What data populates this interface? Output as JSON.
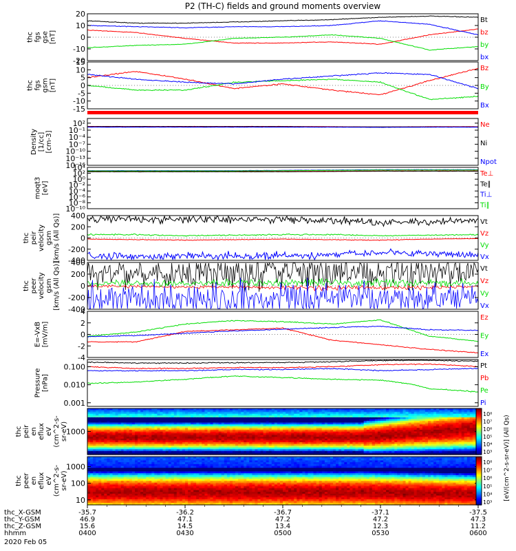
{
  "title": "P2 (TH-C) fields and ground moments overview",
  "colors": {
    "black": "#000000",
    "red": "#ff0000",
    "green": "#00dd00",
    "blue": "#0000ff"
  },
  "panels": [
    {
      "id": "fgs-gse",
      "ylabel": [
        "thc",
        "fgs",
        "gse",
        "[nT]"
      ],
      "ticks": [
        [
          "20",
          20
        ],
        [
          "10",
          10
        ],
        [
          "0",
          0
        ],
        [
          "-10",
          -10
        ],
        [
          "-20",
          -20
        ]
      ],
      "ylim": [
        -20,
        20
      ],
      "type": "lines",
      "series": [
        {
          "name": "Bt",
          "color": "black"
        },
        {
          "name": "bz",
          "color": "red"
        },
        {
          "name": "by",
          "color": "green"
        },
        {
          "name": "bx",
          "color": "blue"
        }
      ]
    },
    {
      "id": "fgs-gsm",
      "ylabel": [
        "thc",
        "fgs",
        "gsm",
        "[nT]"
      ],
      "ticks": [
        [
          "15",
          15
        ],
        [
          "10",
          10
        ],
        [
          "5",
          5
        ],
        [
          "0",
          0
        ],
        [
          "-5",
          -5
        ],
        [
          "-10",
          -10
        ],
        [
          "-15",
          -15
        ]
      ],
      "ylim": [
        -15,
        15
      ],
      "type": "lines",
      "series": [
        {
          "name": "Bz",
          "color": "red"
        },
        {
          "name": "By",
          "color": "green"
        },
        {
          "name": "Bx",
          "color": "blue"
        }
      ]
    },
    {
      "id": "density",
      "ylabel": [
        "Density",
        "[1/cc]",
        "[cm-3]"
      ],
      "ticks": [
        [
          "10²",
          2
        ],
        [
          "10⁻¹",
          -1
        ],
        [
          "10⁻⁴",
          -4
        ],
        [
          "10⁻⁷",
          -7
        ],
        [
          "10⁻¹⁰",
          -10
        ],
        [
          "10⁻¹³",
          -13
        ],
        [
          "10⁻¹⁶",
          -16
        ]
      ],
      "ylim": [
        -16,
        4
      ],
      "type": "lines",
      "series": [
        {
          "name": "Ne",
          "color": "red"
        },
        {
          "name": "Ni",
          "color": "black"
        },
        {
          "name": "Npot",
          "color": "blue"
        }
      ]
    },
    {
      "id": "temperature",
      "ylabel": [
        "moqt3",
        "[eV]"
      ],
      "ticks": [
        [
          "10⁴",
          4
        ],
        [
          "10²",
          2
        ],
        [
          "10⁰",
          0
        ],
        [
          "10⁻²",
          -2
        ],
        [
          "10⁻⁴",
          -4
        ],
        [
          "10⁻⁶",
          -6
        ],
        [
          "10⁻⁸",
          -8
        ],
        [
          "10⁻¹⁰",
          -10
        ]
      ],
      "ylim": [
        -10,
        4
      ],
      "type": "lines",
      "series": [
        {
          "name": "Te⊥",
          "color": "red"
        },
        {
          "name": "Te∥",
          "color": "black"
        },
        {
          "name": "Ti⊥",
          "color": "blue"
        },
        {
          "name": "Ti∥",
          "color": "green"
        }
      ]
    },
    {
      "id": "pei-velocity",
      "ylabel": [
        "thc",
        "peir",
        "velocity",
        "gsm",
        "[km/s (All Qs)]"
      ],
      "ticks": [
        [
          "400",
          400
        ],
        [
          "200",
          200
        ],
        [
          "0",
          0
        ],
        [
          "-200",
          -200
        ],
        [
          "-400",
          -400
        ]
      ],
      "ylim": [
        -400,
        400
      ],
      "type": "lines",
      "series": [
        {
          "name": "Vt",
          "color": "black"
        },
        {
          "name": "Vz",
          "color": "red"
        },
        {
          "name": "Vy",
          "color": "green"
        },
        {
          "name": "Vx",
          "color": "blue"
        }
      ]
    },
    {
      "id": "pee-velocity",
      "ylabel": [
        "thc",
        "peer",
        "velocity",
        "gsm",
        "[km/s (All Qs)]"
      ],
      "ticks": [
        [
          "400",
          400
        ],
        [
          "200",
          200
        ],
        [
          "0",
          0
        ],
        [
          "-200",
          -200
        ],
        [
          "-400",
          -400
        ]
      ],
      "ylim": [
        -400,
        400
      ],
      "type": "lines",
      "series": [
        {
          "name": "Vt",
          "color": "black"
        },
        {
          "name": "Vz",
          "color": "red"
        },
        {
          "name": "Vy",
          "color": "green"
        },
        {
          "name": "Vx",
          "color": "blue"
        }
      ]
    },
    {
      "id": "efield",
      "ylabel": [
        "E=-VxB",
        "[mV/m]"
      ],
      "ticks": [
        [
          "4",
          4
        ],
        [
          "2",
          2
        ],
        [
          "0",
          0
        ],
        [
          "-2",
          -2
        ],
        [
          "-4",
          -4
        ]
      ],
      "ylim": [
        -4,
        4
      ],
      "type": "lines",
      "series": [
        {
          "name": "Ez",
          "color": "red"
        },
        {
          "name": "Ey",
          "color": "green"
        },
        {
          "name": "Ex",
          "color": "blue"
        }
      ]
    },
    {
      "id": "pressure",
      "ylabel": [
        "Pressure",
        "[nPa]"
      ],
      "ticks": [
        [
          "0.100",
          -1
        ],
        [
          "0.010",
          -2
        ],
        [
          "0.001",
          -3
        ]
      ],
      "ylim": [
        -3.2,
        -0.6
      ],
      "type": "lines",
      "series": [
        {
          "name": "Pt",
          "color": "black"
        },
        {
          "name": "Pb",
          "color": "red"
        },
        {
          "name": "Pe",
          "color": "green"
        },
        {
          "name": "Pi",
          "color": "blue"
        }
      ]
    },
    {
      "id": "peir-spec",
      "ylabel": [
        "thc",
        "peir",
        "en",
        "eflux",
        "eV",
        "(cm^2-s-",
        "sr-eV)"
      ],
      "ticks": [
        [
          "1000",
          3
        ]
      ],
      "ylim": [
        1.5,
        4.5
      ],
      "type": "spec",
      "kind": "ion"
    },
    {
      "id": "peer-spec",
      "ylabel": [
        "thc",
        "peer",
        "en",
        "eflux",
        "eV",
        "(cm^2-s-",
        "sr-eV)"
      ],
      "ticks": [
        [
          "1000",
          3
        ],
        [
          "100",
          2
        ],
        [
          "10",
          1
        ]
      ],
      "ylim": [
        0.7,
        3.6
      ],
      "type": "spec",
      "kind": "electron"
    }
  ],
  "colorbars": [
    {
      "label": "[eV/(cm^2-s-sr-eV)] (All Qs)",
      "ticks": [
        "10⁸",
        "10⁷",
        "10⁶",
        "10⁵",
        "10⁴",
        "10³"
      ]
    },
    {
      "label": "[eV/(cm^2-s-sr-eV)] (All Qs)",
      "ticks": [
        "10⁸",
        "10⁷",
        "10⁶",
        "10⁵",
        "10⁴",
        "10³"
      ]
    }
  ],
  "xaxis": {
    "rows": [
      {
        "label": "thc_X-GSM",
        "values": [
          "-35.7",
          "-36.2",
          "-36.7",
          "-37.1",
          "-37.5"
        ]
      },
      {
        "label": "thc_Y-GSM",
        "values": [
          "46.9",
          "47.1",
          "47.2",
          "47.2",
          "47.3"
        ]
      },
      {
        "label": "thc_Z-GSM",
        "values": [
          "15.6",
          "14.5",
          "13.4",
          "12.3",
          "11.2"
        ]
      },
      {
        "label": "hhmm",
        "values": [
          "0400",
          "0430",
          "0500",
          "0530",
          "0600"
        ]
      }
    ],
    "date": "2020 Feb 05"
  },
  "chart_data": {
    "type": "line",
    "title": "P2 (TH-C) fields and ground moments overview",
    "x": [
      "0400",
      "0415",
      "0430",
      "0445",
      "0500",
      "0515",
      "0530",
      "0545",
      "0600"
    ],
    "panels": [
      {
        "name": "thc fgs gse [nT]",
        "ylim": [
          -20,
          20
        ],
        "series": [
          {
            "name": "Bt",
            "values": [
              14,
              12,
              12,
              13,
              14,
              15,
              17,
              18,
              17
            ]
          },
          {
            "name": "bz",
            "values": [
              6,
              4,
              -1,
              -5,
              -5,
              -4,
              -6,
              2,
              7
            ]
          },
          {
            "name": "by",
            "values": [
              -9,
              -7,
              -6,
              -1,
              0,
              2,
              -1,
              -11,
              -8
            ]
          },
          {
            "name": "bx",
            "values": [
              10,
              9,
              8,
              9,
              9,
              10,
              14,
              11,
              2
            ]
          }
        ]
      },
      {
        "name": "thc fgs gsm [nT]",
        "ylim": [
          -15,
          15
        ],
        "series": [
          {
            "name": "Bz",
            "values": [
              5,
              9,
              4,
              -2,
              1,
              -3,
              -6,
              3,
              11
            ]
          },
          {
            "name": "By",
            "values": [
              0,
              -3,
              -3,
              2,
              3,
              4,
              2,
              -9,
              -7
            ]
          },
          {
            "name": "Bx",
            "values": [
              7,
              4,
              2,
              1,
              4,
              6,
              8,
              7,
              -2
            ]
          }
        ]
      },
      {
        "name": "Density [1/cc]",
        "ylim": [
          -16,
          4
        ],
        "scale": "log10",
        "series": [
          {
            "name": "Ne",
            "values": [
              0.6,
              0.6,
              0.6,
              0.6,
              0.6,
              0.5,
              0.4,
              0.5,
              0.5
            ]
          },
          {
            "name": "Ni",
            "values": [
              0.5,
              0.5,
              0.5,
              0.5,
              0.5,
              0.4,
              0.4,
              0.4,
              0.4
            ]
          },
          {
            "name": "Npot",
            "values": [
              0.3,
              0.3,
              0.3,
              0.3,
              0.3,
              0.3,
              0.2,
              0.3,
              0.3
            ]
          }
        ]
      },
      {
        "name": "moqt3 [eV]",
        "ylim": [
          -10,
          4
        ],
        "scale": "log10",
        "series": [
          {
            "name": "Te⊥",
            "values": [
              2.6,
              2.6,
              2.6,
              2.6,
              2.6,
              2.7,
              2.8,
              2.8,
              2.8
            ]
          },
          {
            "name": "Te∥",
            "values": [
              2.5,
              2.5,
              2.5,
              2.5,
              2.5,
              2.6,
              2.7,
              2.7,
              2.7
            ]
          },
          {
            "name": "Ti⊥",
            "values": [
              2.9,
              2.9,
              2.9,
              2.9,
              3.0,
              3.1,
              3.2,
              3.2,
              3.2
            ]
          },
          {
            "name": "Ti∥",
            "values": [
              2.8,
              2.8,
              2.8,
              2.8,
              2.9,
              3.0,
              3.1,
              3.1,
              3.1
            ]
          }
        ]
      },
      {
        "name": "thc peir velocity gsm [km/s (All Qs)]",
        "ylim": [
          -400,
          400
        ],
        "series": [
          {
            "name": "Vt",
            "values": [
              350,
              340,
              330,
              330,
              330,
              320,
              270,
              290,
              320
            ]
          },
          {
            "name": "Vz",
            "values": [
              -20,
              -30,
              -40,
              -30,
              -20,
              -30,
              -40,
              -20,
              -10
            ]
          },
          {
            "name": "Vy",
            "values": [
              60,
              60,
              40,
              50,
              60,
              60,
              40,
              50,
              60
            ]
          },
          {
            "name": "Vx",
            "values": [
              -330,
              -330,
              -320,
              -320,
              -320,
              -310,
              -260,
              -280,
              -310
            ]
          }
        ]
      },
      {
        "name": "thc peer velocity gsm [km/s (All Qs)]",
        "ylim": [
          -400,
          400
        ],
        "series": [
          {
            "name": "Vt",
            "values": [
              250,
              240,
              240,
              250,
              260,
              260,
              250,
              240,
              240
            ]
          },
          {
            "name": "Vz",
            "values": [
              0,
              -10,
              -20,
              -20,
              -30,
              -40,
              -30,
              -30,
              -20
            ]
          },
          {
            "name": "Vy",
            "values": [
              50,
              50,
              40,
              50,
              60,
              60,
              60,
              50,
              50
            ]
          },
          {
            "name": "Vx",
            "values": [
              -230,
              -220,
              -220,
              -230,
              -240,
              -240,
              -230,
              -210,
              -220
            ]
          }
        ]
      },
      {
        "name": "E=-VxB [mV/m]",
        "ylim": [
          -4,
          4
        ],
        "series": [
          {
            "name": "Ez",
            "values": [
              -1.3,
              -1.3,
              0.5,
              0.8,
              1.1,
              -1.0,
              -1.8,
              -2.6,
              -3.2
            ]
          },
          {
            "name": "Ey",
            "values": [
              -0.3,
              0.4,
              1.8,
              2.4,
              2.2,
              1.8,
              2.5,
              -0.3,
              -1.2
            ]
          },
          {
            "name": "Ex",
            "values": [
              -0.4,
              -0.2,
              0.2,
              0.6,
              0.9,
              1.2,
              1.4,
              0.8,
              0.7
            ]
          }
        ]
      },
      {
        "name": "Pressure [nPa]",
        "ylim": [
          0.001,
          0.3
        ],
        "scale": "log10",
        "series": [
          {
            "name": "Pt",
            "values": [
              0.18,
              0.16,
              0.16,
              0.17,
              0.17,
              0.19,
              0.22,
              0.23,
              0.2
            ]
          },
          {
            "name": "Pb",
            "values": [
              0.1,
              0.08,
              0.08,
              0.09,
              0.09,
              0.1,
              0.13,
              0.14,
              0.1
            ]
          },
          {
            "name": "Pe",
            "values": [
              0.012,
              0.014,
              0.02,
              0.03,
              0.025,
              0.02,
              0.018,
              0.006,
              0.004
            ]
          },
          {
            "name": "Pi",
            "values": [
              0.06,
              0.06,
              0.06,
              0.07,
              0.07,
              0.08,
              0.06,
              0.07,
              0.08
            ]
          }
        ]
      },
      {
        "name": "thc peir en eflux eV (cm^2-s-sr-eV)",
        "type": "heatmap"
      },
      {
        "name": "thc peer en eflux eV (cm^2-s-sr-eV)",
        "type": "heatmap"
      }
    ],
    "xlabel": "hhmm"
  }
}
